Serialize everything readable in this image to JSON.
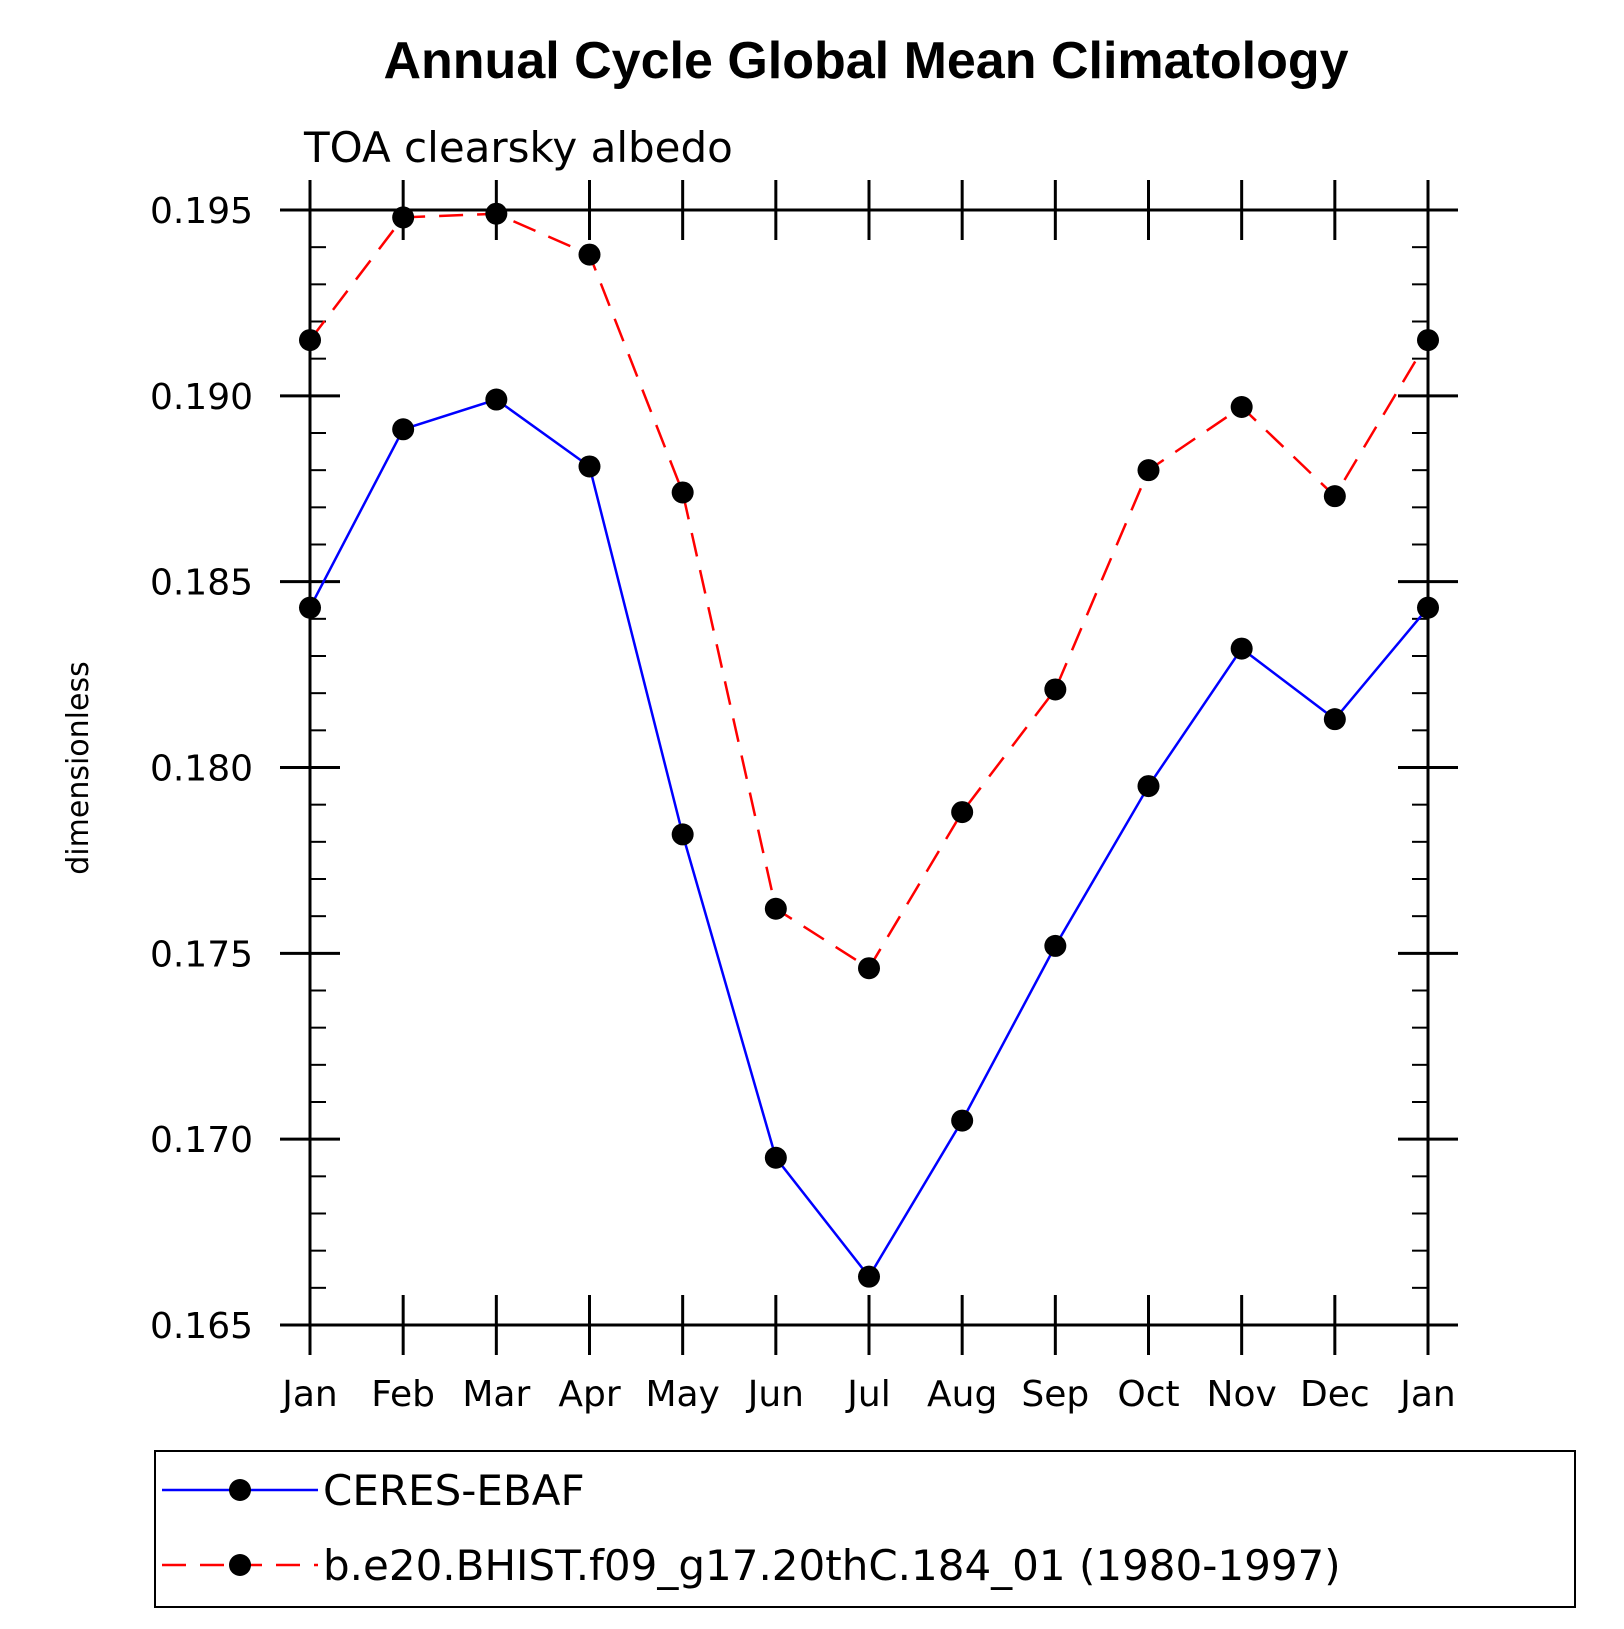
{
  "chart_data": {
    "type": "line",
    "title": "Annual Cycle Global Mean Climatology",
    "subtitle": "TOA clearsky albedo",
    "xlabel": "",
    "ylabel": "dimensionless",
    "categories": [
      "Jan",
      "Feb",
      "Mar",
      "Apr",
      "May",
      "Jun",
      "Jul",
      "Aug",
      "Sep",
      "Oct",
      "Nov",
      "Dec",
      "Jan"
    ],
    "ylim": [
      0.165,
      0.195
    ],
    "yticks": [
      0.165,
      0.17,
      0.175,
      0.18,
      0.185,
      0.19,
      0.195
    ],
    "ytick_labels": [
      "0.165",
      "0.170",
      "0.175",
      "0.180",
      "0.185",
      "0.190",
      "0.195"
    ],
    "y_minor_step": 0.001,
    "legend_position": "bottom",
    "series": [
      {
        "name": "CERES-EBAF",
        "color": "#0000ff",
        "style": "solid",
        "marker_color": "#000000",
        "values": [
          0.1843,
          0.1891,
          0.1899,
          0.1881,
          0.1782,
          0.1695,
          0.1663,
          0.1705,
          0.1752,
          0.1795,
          0.1832,
          0.1813,
          0.1843
        ]
      },
      {
        "name": "b.e20.BHIST.f09_g17.20thC.184_01 (1980-1997)",
        "color": "#ff0000",
        "style": "dashed",
        "marker_color": "#000000",
        "values": [
          0.1915,
          0.1948,
          0.1949,
          0.1938,
          0.1874,
          0.1762,
          0.1746,
          0.1788,
          0.1821,
          0.188,
          0.1897,
          0.1873,
          0.1915
        ]
      }
    ]
  }
}
